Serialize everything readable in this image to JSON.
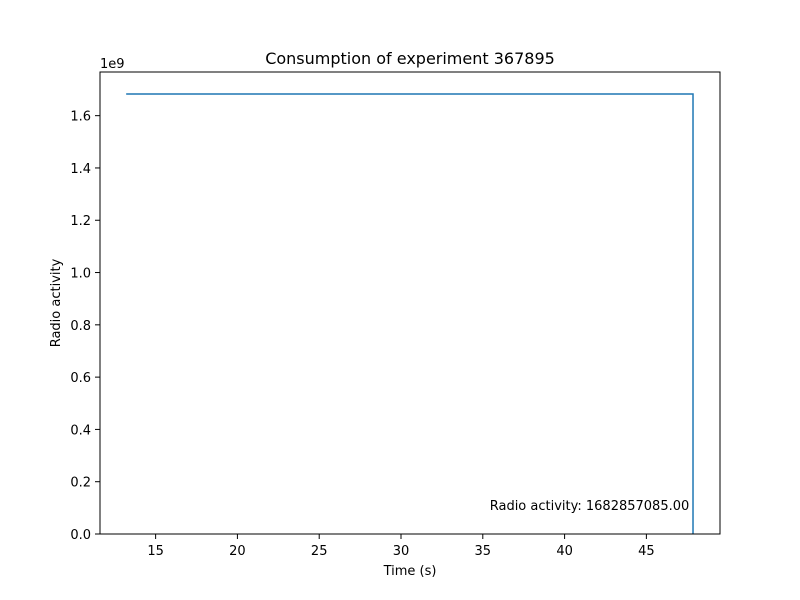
{
  "chart_data": {
    "type": "line",
    "title": "Consumption of experiment 367895",
    "xlabel": "Time (s)",
    "ylabel": "Radio activity",
    "y_offset_label": "1e9",
    "y_multiplier": 1000000000,
    "xlim": [
      11.6,
      49.5
    ],
    "ylim": [
      0,
      1.767
    ],
    "x_ticks": [
      15,
      20,
      25,
      30,
      35,
      40,
      45
    ],
    "x_tick_labels": [
      "15",
      "20",
      "25",
      "30",
      "35",
      "40",
      "45"
    ],
    "y_ticks": [
      0.0,
      0.2,
      0.4,
      0.6,
      0.8,
      1.0,
      1.2,
      1.4,
      1.6
    ],
    "y_tick_labels": [
      "0.0",
      "0.2",
      "0.4",
      "0.6",
      "0.8",
      "1.0",
      "1.2",
      "1.4",
      "1.6"
    ],
    "grid": false,
    "series": [
      {
        "color": "#1f77b4",
        "x": [
          13.2,
          47.85,
          47.85
        ],
        "y": [
          1.682857085,
          1.682857085,
          0.0
        ]
      }
    ],
    "annotation": {
      "text": "Radio activity: 1682857085.00",
      "x": 47.5,
      "y": 0.08
    }
  }
}
